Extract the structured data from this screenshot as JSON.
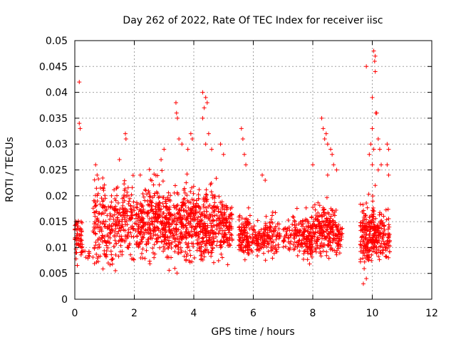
{
  "chart_data": {
    "type": "scatter",
    "title": "Day 262 of 2022, Rate Of TEC Index for receiver iisc",
    "xlabel": "GPS time / hours",
    "ylabel": "ROTI / TECUs",
    "xlim": [
      0,
      12
    ],
    "ylim": [
      0,
      0.05
    ],
    "xticks": [
      "0",
      "2",
      "4",
      "6",
      "8",
      "10",
      "12"
    ],
    "yticks": [
      "0",
      "0.005",
      "0.01",
      "0.015",
      "0.02",
      "0.025",
      "0.03",
      "0.035",
      "0.04",
      "0.045",
      "0.05"
    ],
    "grid": true,
    "marker": "+",
    "color": "#ff0000",
    "clusters": [
      {
        "x_range": [
          0.0,
          0.25
        ],
        "y_range": [
          0.006,
          0.019
        ],
        "n": 55
      },
      {
        "x_range": [
          0.2,
          0.6
        ],
        "y_range": [
          0.007,
          0.011
        ],
        "n": 12
      },
      {
        "x_range": [
          0.6,
          1.0
        ],
        "y_range": [
          0.003,
          0.026
        ],
        "n": 90
      },
      {
        "x_range": [
          1.0,
          1.6
        ],
        "y_range": [
          0.004,
          0.025
        ],
        "n": 130
      },
      {
        "x_range": [
          1.6,
          2.0
        ],
        "y_range": [
          0.005,
          0.027
        ],
        "n": 90
      },
      {
        "x_range": [
          2.0,
          2.5
        ],
        "y_range": [
          0.005,
          0.024
        ],
        "n": 120
      },
      {
        "x_range": [
          2.5,
          3.0
        ],
        "y_range": [
          0.005,
          0.026
        ],
        "n": 150
      },
      {
        "x_range": [
          3.0,
          3.6
        ],
        "y_range": [
          0.004,
          0.024
        ],
        "n": 180
      },
      {
        "x_range": [
          3.6,
          4.2
        ],
        "y_range": [
          0.005,
          0.025
        ],
        "n": 180
      },
      {
        "x_range": [
          4.2,
          4.8
        ],
        "y_range": [
          0.004,
          0.025
        ],
        "n": 180
      },
      {
        "x_range": [
          4.8,
          5.3
        ],
        "y_range": [
          0.006,
          0.022
        ],
        "n": 130
      },
      {
        "x_range": [
          5.5,
          5.9
        ],
        "y_range": [
          0.006,
          0.018
        ],
        "n": 110
      },
      {
        "x_range": [
          5.9,
          6.4
        ],
        "y_range": [
          0.007,
          0.016
        ],
        "n": 80
      },
      {
        "x_range": [
          6.4,
          6.9
        ],
        "y_range": [
          0.007,
          0.018
        ],
        "n": 80
      },
      {
        "x_range": [
          7.0,
          7.3
        ],
        "y_range": [
          0.008,
          0.016
        ],
        "n": 30
      },
      {
        "x_range": [
          7.3,
          7.8
        ],
        "y_range": [
          0.006,
          0.019
        ],
        "n": 90
      },
      {
        "x_range": [
          7.8,
          8.0
        ],
        "y_range": [
          0.006,
          0.018
        ],
        "n": 60
      },
      {
        "x_range": [
          8.0,
          8.8
        ],
        "y_range": [
          0.006,
          0.021
        ],
        "n": 200
      },
      {
        "x_range": [
          8.8,
          9.0
        ],
        "y_range": [
          0.007,
          0.017
        ],
        "n": 40
      },
      {
        "x_range": [
          9.6,
          10.1
        ],
        "y_range": [
          0.004,
          0.021
        ],
        "n": 180
      },
      {
        "x_range": [
          10.1,
          10.3
        ],
        "y_range": [
          0.004,
          0.02
        ],
        "n": 50
      },
      {
        "x_range": [
          10.3,
          10.6
        ],
        "y_range": [
          0.005,
          0.02
        ],
        "n": 60
      }
    ],
    "outliers": [
      [
        0.15,
        0.042
      ],
      [
        0.15,
        0.034
      ],
      [
        0.18,
        0.033
      ],
      [
        0.7,
        0.026
      ],
      [
        0.75,
        0.024
      ],
      [
        1.5,
        0.027
      ],
      [
        1.7,
        0.032
      ],
      [
        1.72,
        0.031
      ],
      [
        2.2,
        0.024
      ],
      [
        2.9,
        0.027
      ],
      [
        3.0,
        0.029
      ],
      [
        3.4,
        0.038
      ],
      [
        3.42,
        0.036
      ],
      [
        3.45,
        0.035
      ],
      [
        3.5,
        0.031
      ],
      [
        3.6,
        0.03
      ],
      [
        3.8,
        0.029
      ],
      [
        3.9,
        0.032
      ],
      [
        3.95,
        0.031
      ],
      [
        4.3,
        0.04
      ],
      [
        4.4,
        0.039
      ],
      [
        4.35,
        0.037
      ],
      [
        4.45,
        0.038
      ],
      [
        4.3,
        0.035
      ],
      [
        4.5,
        0.032
      ],
      [
        4.6,
        0.029
      ],
      [
        4.4,
        0.03
      ],
      [
        4.9,
        0.03
      ],
      [
        5.0,
        0.028
      ],
      [
        5.6,
        0.033
      ],
      [
        5.65,
        0.031
      ],
      [
        5.7,
        0.028
      ],
      [
        5.75,
        0.026
      ],
      [
        6.3,
        0.024
      ],
      [
        6.4,
        0.023
      ],
      [
        8.3,
        0.035
      ],
      [
        8.35,
        0.033
      ],
      [
        8.4,
        0.031
      ],
      [
        8.45,
        0.032
      ],
      [
        8.5,
        0.03
      ],
      [
        8.6,
        0.029
      ],
      [
        8.65,
        0.028
      ],
      [
        8.7,
        0.026
      ],
      [
        8.8,
        0.025
      ],
      [
        8.0,
        0.026
      ],
      [
        8.5,
        0.024
      ],
      [
        9.8,
        0.045
      ],
      [
        10.0,
        0.039
      ],
      [
        10.05,
        0.048
      ],
      [
        10.1,
        0.047
      ],
      [
        10.08,
        0.046
      ],
      [
        10.1,
        0.044
      ],
      [
        10.12,
        0.036
      ],
      [
        10.15,
        0.036
      ],
      [
        10.0,
        0.033
      ],
      [
        9.95,
        0.03
      ],
      [
        10.05,
        0.029
      ],
      [
        10.2,
        0.031
      ],
      [
        10.25,
        0.029
      ],
      [
        9.9,
        0.028
      ],
      [
        10.0,
        0.026
      ],
      [
        10.3,
        0.026
      ],
      [
        10.2,
        0.025
      ],
      [
        10.1,
        0.022
      ],
      [
        10.5,
        0.03
      ],
      [
        10.55,
        0.029
      ],
      [
        10.5,
        0.026
      ],
      [
        10.55,
        0.024
      ],
      [
        9.7,
        0.003
      ],
      [
        9.8,
        0.004
      ]
    ]
  }
}
